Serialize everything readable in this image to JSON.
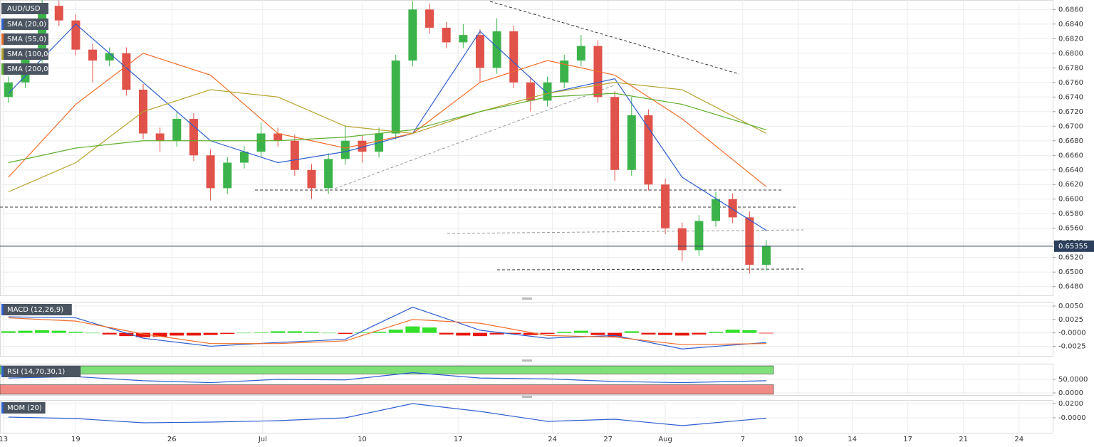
{
  "chart_data": [
    {
      "type": "candlestick",
      "title": "AUD/USD",
      "up_color": "#3cb34a",
      "down_color": "#e0524a",
      "open": [
        0.674,
        0.676,
        0.6795,
        0.6865,
        0.6845,
        0.6805,
        0.679,
        0.68,
        0.675,
        0.669,
        0.668,
        0.671,
        0.666,
        0.6615,
        0.665,
        0.6665,
        0.669,
        0.668,
        0.664,
        0.6615,
        0.6655,
        0.668,
        0.6665,
        0.669,
        0.679,
        0.686,
        0.6835,
        0.6815,
        0.6825,
        0.678,
        0.683,
        0.676,
        0.6735,
        0.676,
        0.679,
        0.681,
        0.674,
        0.664,
        0.6715,
        0.662,
        0.656,
        0.653,
        0.657,
        0.66,
        0.6575,
        0.651
      ],
      "high": [
        0.6768,
        0.6803,
        0.6873,
        0.6872,
        0.6853,
        0.6813,
        0.6808,
        0.6808,
        0.6758,
        0.6698,
        0.672,
        0.6718,
        0.6668,
        0.6658,
        0.6673,
        0.6705,
        0.6698,
        0.6688,
        0.6648,
        0.6663,
        0.67,
        0.6688,
        0.6698,
        0.6798,
        0.6872,
        0.6868,
        0.6843,
        0.684,
        0.6833,
        0.6848,
        0.6838,
        0.6768,
        0.6768,
        0.6798,
        0.6825,
        0.6818,
        0.6748,
        0.674,
        0.6723,
        0.6628,
        0.6568,
        0.6578,
        0.661,
        0.6608,
        0.6583,
        0.6544
      ],
      "low": [
        0.6732,
        0.6752,
        0.6787,
        0.6837,
        0.6797,
        0.676,
        0.6782,
        0.6742,
        0.6682,
        0.6665,
        0.6672,
        0.6652,
        0.6598,
        0.6607,
        0.6642,
        0.6657,
        0.6672,
        0.6632,
        0.66,
        0.6607,
        0.6647,
        0.665,
        0.6657,
        0.6682,
        0.6782,
        0.6827,
        0.6807,
        0.6807,
        0.676,
        0.6772,
        0.6752,
        0.672,
        0.6727,
        0.6752,
        0.6782,
        0.6732,
        0.6625,
        0.6632,
        0.6612,
        0.6552,
        0.6515,
        0.6522,
        0.6562,
        0.6567,
        0.6498,
        0.6502
      ],
      "close": [
        0.676,
        0.6795,
        0.6865,
        0.6845,
        0.6805,
        0.679,
        0.68,
        0.675,
        0.669,
        0.668,
        0.671,
        0.666,
        0.6615,
        0.665,
        0.6665,
        0.669,
        0.668,
        0.664,
        0.6615,
        0.6655,
        0.668,
        0.6665,
        0.669,
        0.679,
        0.686,
        0.6835,
        0.6815,
        0.6825,
        0.678,
        0.683,
        0.676,
        0.6735,
        0.676,
        0.679,
        0.681,
        0.674,
        0.664,
        0.6715,
        0.662,
        0.656,
        0.653,
        0.657,
        0.66,
        0.6575,
        0.651,
        0.6536
      ],
      "series": [
        {
          "name": "SMA (20,0)",
          "color": "#2f5fd0",
          "x": [
            0,
            4,
            8,
            12,
            16,
            20,
            24,
            28,
            32,
            36,
            40,
            45
          ],
          "values": [
            0.6745,
            0.684,
            0.676,
            0.668,
            0.665,
            0.6665,
            0.669,
            0.683,
            0.6745,
            0.6765,
            0.663,
            0.6557
          ]
        },
        {
          "name": "SMA (55,0)",
          "color": "#ef6d2a",
          "x": [
            0,
            4,
            8,
            12,
            16,
            20,
            24,
            28,
            32,
            36,
            40,
            45
          ],
          "values": [
            0.663,
            0.673,
            0.68,
            0.677,
            0.669,
            0.667,
            0.669,
            0.676,
            0.679,
            0.677,
            0.671,
            0.6617
          ]
        },
        {
          "name": "SMA (100,0)",
          "color": "#b5a22e",
          "x": [
            0,
            4,
            8,
            12,
            16,
            20,
            24,
            28,
            32,
            36,
            40,
            45
          ],
          "values": [
            0.661,
            0.665,
            0.672,
            0.675,
            0.674,
            0.67,
            0.669,
            0.672,
            0.6745,
            0.676,
            0.675,
            0.669
          ]
        },
        {
          "name": "SMA (200,0)",
          "color": "#5fae2e",
          "x": [
            0,
            4,
            8,
            12,
            16,
            20,
            24,
            28,
            32,
            36,
            40,
            45
          ],
          "values": [
            0.665,
            0.667,
            0.668,
            0.668,
            0.668,
            0.6685,
            0.6695,
            0.672,
            0.674,
            0.6745,
            0.673,
            0.6695
          ]
        }
      ],
      "last": 0.65355,
      "ylim": [
        0.6468,
        0.6873
      ],
      "yticks": [
        {
          "value": 0.648,
          "label": "0.6480"
        },
        {
          "value": 0.65,
          "label": "0.6500"
        },
        {
          "value": 0.652,
          "label": "0.6520"
        },
        {
          "value": 0.654,
          "label": "0.6540"
        },
        {
          "value": 0.656,
          "label": "0.6560"
        },
        {
          "value": 0.658,
          "label": "0.6580"
        },
        {
          "value": 0.66,
          "label": "0.6600"
        },
        {
          "value": 0.662,
          "label": "0.6620"
        },
        {
          "value": 0.664,
          "label": "0.6640"
        },
        {
          "value": 0.666,
          "label": "0.6660"
        },
        {
          "value": 0.668,
          "label": "0.6680"
        },
        {
          "value": 0.67,
          "label": "0.6700"
        },
        {
          "value": 0.672,
          "label": "0.6720"
        },
        {
          "value": 0.674,
          "label": "0.6740"
        },
        {
          "value": 0.676,
          "label": "0.6760"
        },
        {
          "value": 0.678,
          "label": "0.6780"
        },
        {
          "value": 0.68,
          "label": "0.6800"
        },
        {
          "value": 0.682,
          "label": "0.6820"
        },
        {
          "value": 0.684,
          "label": "0.6840"
        },
        {
          "value": 0.686,
          "label": "0.6860"
        }
      ],
      "xlim": [
        -0.5,
        62
      ],
      "xticks": [
        {
          "value": -0.3,
          "label": "13"
        },
        {
          "value": 4,
          "label": "19"
        },
        {
          "value": 9.7,
          "label": "26"
        },
        {
          "value": 15.1,
          "label": "Jul"
        },
        {
          "value": 21,
          "label": "10"
        },
        {
          "value": 26.7,
          "label": "17"
        },
        {
          "value": 32.3,
          "label": "24"
        },
        {
          "value": 35.6,
          "label": "27"
        },
        {
          "value": 39,
          "label": "Aug"
        },
        {
          "value": 43.6,
          "label": "7"
        },
        {
          "value": 46.9,
          "label": "10"
        },
        {
          "value": 50.1,
          "label": "14"
        },
        {
          "value": 53.4,
          "label": "17"
        },
        {
          "value": 56.7,
          "label": "21"
        },
        {
          "value": 60,
          "label": "24"
        }
      ]
    },
    {
      "type": "macd",
      "title": "MACD (12,26,9)",
      "up_color": "#33e02a",
      "down_color": "#e8150c",
      "values": [
        0.0003,
        0.0004,
        0.0005,
        0.0004,
        0.0002,
        0,
        -0.0003,
        -0.0006,
        -0.0008,
        -0.0007,
        -0.0005,
        -0.0005,
        -0.0004,
        -0.0002,
        0,
        0.0001,
        0.0003,
        0.0003,
        0.0002,
        0,
        -0.0002,
        0.0001,
        0.0002,
        0.0006,
        0.0012,
        0.001,
        -0.0003,
        -0.0005,
        -0.0006,
        -0.0003,
        -0.0002,
        -0.0004,
        -0.0002,
        0.0002,
        0.0004,
        -0.0004,
        -0.0007,
        0.0003,
        -0.0003,
        -0.0004,
        -0.0005,
        -0.0003,
        0.0002,
        0.0006,
        0.0005,
        -0.0001
      ],
      "series": [
        {
          "color": "#2f5fd0",
          "x": [
            0,
            4,
            8,
            12,
            16,
            20,
            24,
            28,
            32,
            36,
            40,
            45
          ],
          "values": [
            0.003,
            0.0028,
            -0.001,
            -0.0025,
            -0.0018,
            -0.0012,
            0.0048,
            0.0005,
            -0.001,
            -0.0005,
            -0.003,
            -0.0018
          ]
        },
        {
          "color": "#ef6d2a",
          "x": [
            0,
            4,
            8,
            12,
            16,
            20,
            24,
            28,
            32,
            36,
            40,
            45
          ],
          "values": [
            0.0028,
            0.0022,
            -0.0002,
            -0.002,
            -0.002,
            -0.0015,
            0.0025,
            0.0018,
            -0.0005,
            -0.0008,
            -0.0022,
            -0.002
          ]
        }
      ],
      "ylim": [
        -0.0043,
        0.0058
      ],
      "yticks": [
        {
          "value": 0.005,
          "label": "0.0050"
        },
        {
          "value": 0.0025,
          "label": "0.0025"
        },
        {
          "value": 0,
          "label": "-0.0000"
        },
        {
          "value": -0.0025,
          "label": "-0.0025"
        }
      ]
    },
    {
      "type": "rsi",
      "title": "RSI (14,70,30,1)",
      "bands": [
        {
          "from": 70,
          "to": 100,
          "color": "#7fe07a"
        },
        {
          "from": -5,
          "to": 30,
          "color": "#f08a86"
        }
      ],
      "series": [
        {
          "color": "#2f5fd0",
          "x": [
            0,
            4,
            8,
            12,
            16,
            20,
            24,
            28,
            32,
            36,
            40,
            45
          ],
          "values": [
            55,
            60,
            45,
            38,
            50,
            48,
            75,
            55,
            52,
            42,
            38,
            45
          ]
        }
      ],
      "ylim": [
        -8,
        108
      ],
      "yticks": [
        {
          "value": 50,
          "label": "50.0000"
        },
        {
          "value": 0,
          "label": "0.0000"
        }
      ]
    },
    {
      "type": "mom",
      "title": "MOM (20)",
      "series": [
        {
          "color": "#2f5fd0",
          "x": [
            0,
            4,
            8,
            12,
            16,
            20,
            24,
            28,
            32,
            36,
            40,
            45
          ],
          "values": [
            0.001,
            -0.001,
            -0.007,
            -0.006,
            -0.004,
            0,
            0.02,
            0.009,
            -0.005,
            -0.002,
            -0.011,
            -0.0005
          ]
        }
      ],
      "ylim": [
        -0.021,
        0.025
      ],
      "yticks": [
        {
          "value": 0.02,
          "label": "0.0200"
        },
        {
          "value": 0,
          "label": "-0.0000"
        }
      ]
    }
  ]
}
